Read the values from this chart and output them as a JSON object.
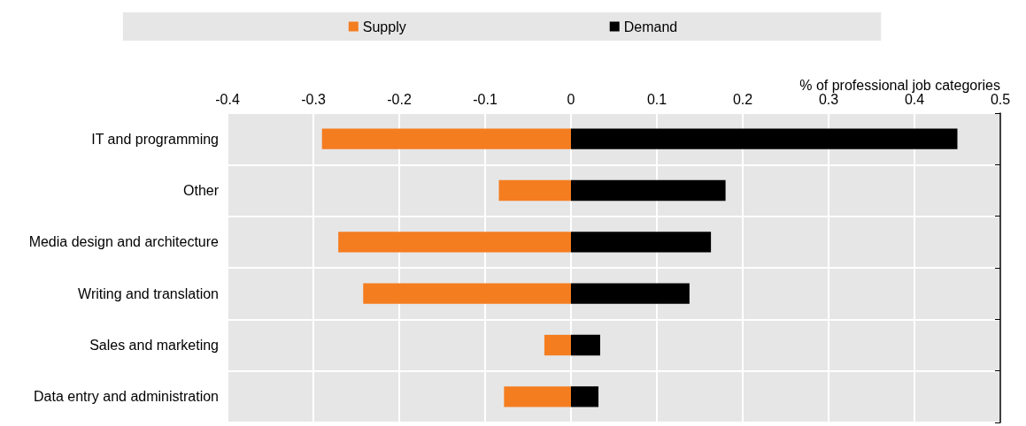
{
  "chart_data": {
    "type": "bar",
    "orientation": "horizontal",
    "stacked": true,
    "xlabel": "% of professional job categories",
    "categories": [
      "IT and programming",
      "Other",
      "Media design and architecture",
      "Writing and translation",
      "Sales and marketing",
      "Data entry and administration"
    ],
    "series": [
      {
        "name": "Supply",
        "color": "#f47d20",
        "values": [
          -0.29,
          -0.084,
          -0.271,
          -0.242,
          -0.031,
          -0.078
        ]
      },
      {
        "name": "Demand",
        "color": "#000000",
        "values": [
          0.45,
          0.18,
          0.163,
          0.138,
          0.034,
          0.032
        ]
      }
    ],
    "xlim": [
      -0.4,
      0.5
    ],
    "xticks": [
      -0.4,
      -0.3,
      -0.2,
      -0.1,
      0,
      0.1,
      0.2,
      0.3,
      0.4,
      0.5
    ],
    "grid": true,
    "legend": "top"
  }
}
